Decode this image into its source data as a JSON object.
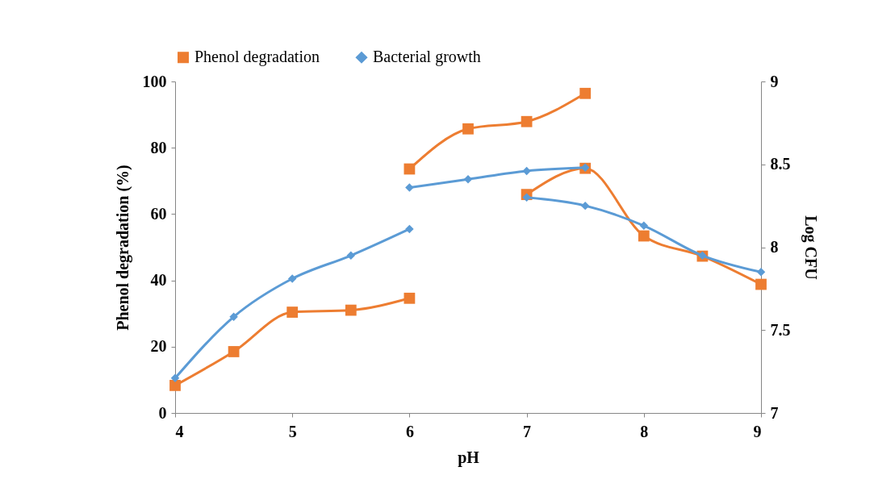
{
  "chart_data": {
    "type": "line",
    "xlabel": "pH",
    "ylabel": "Phenol degradation (%)",
    "y2label": "Log CFU",
    "xlim": [
      4,
      9
    ],
    "xticks": [
      4,
      5,
      6,
      7,
      8,
      9
    ],
    "ylim": [
      0,
      100
    ],
    "yticks": [
      0,
      20,
      40,
      60,
      80,
      100
    ],
    "y2lim": [
      7,
      9
    ],
    "y2ticks": [
      7,
      7.5,
      8,
      8.5,
      9
    ],
    "grid": false,
    "legend": "top",
    "line_style": "solid",
    "series": [
      {
        "name": "Phenol degradation",
        "color": "#ed7d31",
        "marker": "square",
        "axis": "y",
        "x": [
          4,
          4.5,
          5,
          5.5,
          6
        ],
        "values": [
          8.3,
          18.5,
          30.4,
          31.0,
          34.6
        ]
      },
      {
        "name": "Bacterial growth",
        "color": "#5b9bd5",
        "marker": "diamond",
        "axis": "y2",
        "x": [
          4,
          4.5,
          5,
          5.5,
          6
        ],
        "values": [
          7.21,
          7.58,
          7.81,
          7.95,
          8.11
        ]
      },
      {
        "color": "#ed7d31",
        "marker": "square",
        "axis": "y",
        "x": [
          6,
          6.5,
          7,
          7.5
        ],
        "values": [
          73.6,
          85.7,
          87.9,
          96.4
        ]
      },
      {
        "color": "#5b9bd5",
        "marker": "diamond",
        "axis": "y2",
        "x": [
          6,
          6.5,
          7,
          7.5
        ],
        "values": [
          8.36,
          8.41,
          8.46,
          8.48
        ]
      },
      {
        "color": "#ed7d31",
        "marker": "square",
        "axis": "y",
        "x": [
          7,
          7.5,
          8,
          8.5,
          9
        ],
        "values": [
          65.9,
          73.8,
          53.4,
          47.3,
          38.8
        ]
      },
      {
        "color": "#5b9bd5",
        "marker": "diamond",
        "axis": "y2",
        "x": [
          7,
          7.5,
          8,
          8.5,
          9
        ],
        "values": [
          8.3,
          8.25,
          8.13,
          7.95,
          7.85
        ]
      }
    ]
  }
}
